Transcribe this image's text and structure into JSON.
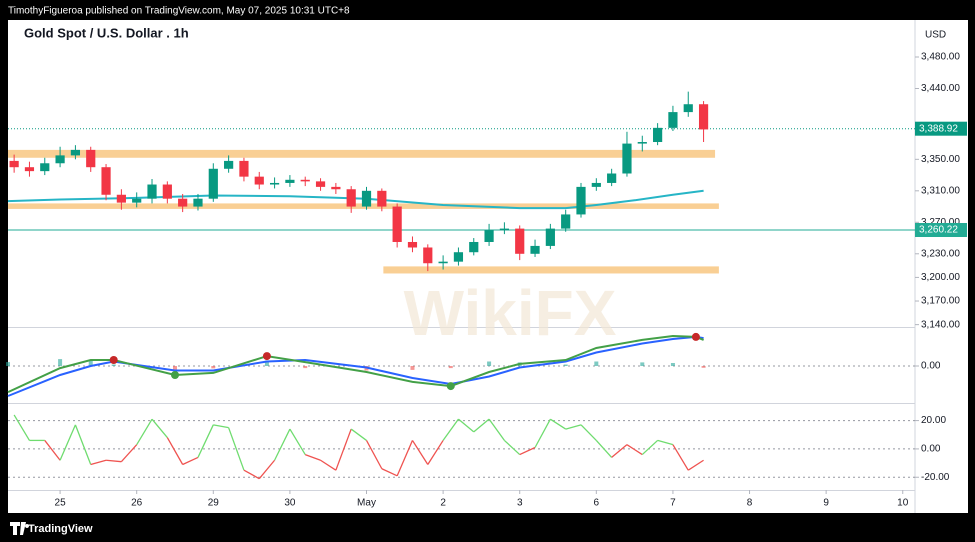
{
  "header": "TimothyFigueroa published on TradingView.com, May 07, 2025 10:31 UTC+8",
  "footer": "TradingView",
  "chart_data": [
    {
      "type": "candlestick",
      "title": "Gold Spot / U.S. Dollar . 1h",
      "currency": "USD",
      "watermark": "WikiFX",
      "x": [
        -0.6,
        -0.4,
        -0.2,
        0,
        0.2,
        0.4,
        0.6,
        0.8,
        1.0,
        1.2,
        1.4,
        1.6,
        1.8,
        2.0,
        2.2,
        2.4,
        2.6,
        2.8,
        3.0,
        3.2,
        3.4,
        3.6,
        3.8,
        4.0,
        4.2,
        4.4,
        4.6,
        4.8,
        5.0,
        5.2,
        5.4,
        5.6,
        5.8,
        6.0,
        6.2,
        6.4,
        6.6,
        6.8,
        7.0,
        7.2,
        7.4,
        7.6,
        7.8,
        8.0,
        8.2,
        8.4
      ],
      "open": [
        3348,
        3340,
        3335,
        3345,
        3355,
        3362,
        3340,
        3305,
        3295,
        3300,
        3318,
        3300,
        3290,
        3300,
        3338,
        3348,
        3328,
        3318,
        3320,
        3324,
        3322,
        3315,
        3312,
        3290,
        3310,
        3290,
        3245,
        3238,
        3218,
        3220,
        3232,
        3245,
        3260,
        3262,
        3230,
        3240,
        3262,
        3280,
        3315,
        3320,
        3332,
        3370,
        3372,
        3390,
        3410,
        3420
      ],
      "high": [
        3356,
        3347,
        3352,
        3366,
        3368,
        3366,
        3344,
        3312,
        3308,
        3325,
        3322,
        3306,
        3306,
        3345,
        3355,
        3352,
        3334,
        3327,
        3330,
        3328,
        3326,
        3320,
        3316,
        3315,
        3313,
        3294,
        3252,
        3242,
        3228,
        3238,
        3250,
        3268,
        3270,
        3266,
        3248,
        3268,
        3286,
        3320,
        3326,
        3338,
        3385,
        3380,
        3396,
        3418,
        3436,
        3424
      ],
      "low": [
        3333,
        3328,
        3330,
        3340,
        3350,
        3334,
        3298,
        3286,
        3289,
        3294,
        3294,
        3283,
        3285,
        3296,
        3333,
        3322,
        3312,
        3313,
        3315,
        3316,
        3310,
        3306,
        3282,
        3286,
        3284,
        3238,
        3232,
        3208,
        3210,
        3215,
        3228,
        3240,
        3255,
        3222,
        3226,
        3236,
        3258,
        3276,
        3310,
        3316,
        3328,
        3360,
        3368,
        3386,
        3404,
        3372
      ],
      "close": [
        3340,
        3335,
        3345,
        3355,
        3362,
        3340,
        3305,
        3295,
        3300,
        3318,
        3300,
        3290,
        3300,
        3338,
        3348,
        3328,
        3318,
        3320,
        3324,
        3322,
        3315,
        3312,
        3290,
        3310,
        3290,
        3245,
        3238,
        3218,
        3220,
        3232,
        3245,
        3260,
        3262,
        3230,
        3240,
        3262,
        3280,
        3315,
        3320,
        3332,
        3370,
        3372,
        3390,
        3410,
        3420,
        3388
      ],
      "up_color": "#089981",
      "down_color": "#f23645",
      "overlays": [
        {
          "x": [
            -0.68,
            0,
            1,
            2,
            3,
            4,
            5,
            6,
            6.6,
            7,
            7.5,
            8,
            8.4
          ],
          "values": [
            3297,
            3299,
            3301,
            3304,
            3303,
            3300,
            3292,
            3288,
            3288,
            3292,
            3298,
            3305,
            3310
          ],
          "color": "#26b5c6"
        }
      ],
      "zones": [
        {
          "low": 3352,
          "high": 3362,
          "start": -0.68,
          "end": 8.55
        },
        {
          "low": 3287,
          "high": 3294,
          "start": -0.68,
          "end": 8.6
        },
        {
          "low": 3205,
          "high": 3214,
          "start": 4.22,
          "end": 8.6
        }
      ],
      "zone_color": "#f9cf94",
      "last_price": {
        "value": 3388.92,
        "label": "3,388.92"
      },
      "level": {
        "value": 3260.22,
        "label": "3,260.22"
      },
      "level_color": "#22ab94",
      "xlim": [
        -0.68,
        11.16
      ],
      "ylim": [
        3137,
        3527
      ],
      "yticks": [
        {
          "value": 3480,
          "label": "3,480.00"
        },
        {
          "value": 3440,
          "label": "3,440.00"
        },
        {
          "value": 3350,
          "label": "3,350.00"
        },
        {
          "value": 3310,
          "label": "3,310.00"
        },
        {
          "value": 3270,
          "label": "3,270.00"
        },
        {
          "value": 3230,
          "label": "3,230.00"
        },
        {
          "value": 3200,
          "label": "3,200.00"
        },
        {
          "value": 3170,
          "label": "3,170.00"
        },
        {
          "value": 3140,
          "label": "3,140.00"
        }
      ]
    },
    {
      "type": "macd",
      "x": [
        -0.68,
        0,
        0.4,
        0.7,
        1.5,
        2,
        2.7,
        3.2,
        4,
        4.6,
        5.1,
        5.6,
        6,
        6.6,
        7,
        7.6,
        8,
        8.3,
        8.4
      ],
      "series": [
        {
          "values": [
            -8.7,
            -0.7,
            2,
            2,
            -3,
            -2.3,
            3.3,
            1.3,
            -2,
            -5.3,
            -6.7,
            -2,
            0.7,
            2,
            6,
            8.7,
            10,
            9.7,
            8.7
          ],
          "color": "#43a047"
        },
        {
          "values": [
            -10,
            -3,
            0,
            1.5,
            -1.5,
            -1.5,
            1.5,
            2,
            -0.5,
            -4,
            -6,
            -3.5,
            -0.5,
            1.5,
            4.5,
            7.5,
            9,
            9.7,
            9.3
          ],
          "color": "#2962ff"
        }
      ],
      "histogram": [
        1.3,
        2.3,
        2,
        0.5,
        -1.5,
        -0.8,
        1.8,
        -0.7,
        -1.5,
        -1.3,
        -0.7,
        1.5,
        1.2,
        0.5,
        1.5,
        1.2,
        1,
        0,
        -0.6
      ],
      "hist_pos_color": "#26a69a",
      "hist_neg_color": "#ef5350",
      "cross_x": [
        0.7,
        1.5,
        2.7,
        5.1,
        8.3
      ],
      "cross_values": [
        2,
        -3,
        3.3,
        -6.7,
        9.7
      ],
      "cross_colors": [
        "#c62828",
        "#43a047",
        "#c62828",
        "#43a047",
        "#c62828"
      ],
      "xlim": [
        -0.68,
        11.16
      ],
      "ylim": [
        -12,
        12
      ],
      "yticks": [
        {
          "value": 0,
          "label": "0.00"
        }
      ]
    },
    {
      "type": "oscillator",
      "x": [
        -0.6,
        -0.4,
        -0.2,
        0,
        0.2,
        0.4,
        0.6,
        0.8,
        1.0,
        1.2,
        1.4,
        1.6,
        1.8,
        2.0,
        2.2,
        2.4,
        2.6,
        2.8,
        3.0,
        3.2,
        3.4,
        3.6,
        3.8,
        4.0,
        4.2,
        4.4,
        4.6,
        4.8,
        5.0,
        5.2,
        5.4,
        5.6,
        5.8,
        6.0,
        6.2,
        6.4,
        6.6,
        6.8,
        7.0,
        7.2,
        7.4,
        7.6,
        7.8,
        8.0,
        8.2,
        8.4
      ],
      "values": [
        24,
        6,
        6,
        -8,
        17,
        -11,
        -8,
        -9,
        3,
        21,
        8,
        -11,
        -6,
        17,
        15,
        -15,
        -21,
        -8,
        14,
        -4,
        -8,
        -15,
        14,
        6,
        -14,
        -19,
        6,
        -11,
        6,
        21,
        12,
        21,
        6,
        -4,
        1,
        21,
        14,
        17,
        6,
        -6,
        3,
        -4,
        6,
        3,
        -15,
        -8
      ],
      "pos_color": "#6fdc6f",
      "neg_color": "#ef5350",
      "xlim": [
        -0.68,
        11.16
      ],
      "ylim": [
        -29,
        31
      ],
      "yticks": [
        {
          "value": 20,
          "label": "20.00"
        },
        {
          "value": 0,
          "label": "0.00"
        },
        {
          "value": -20,
          "label": "-20.00"
        }
      ],
      "xticks": [
        {
          "value": 0,
          "label": "25"
        },
        {
          "value": 1,
          "label": "26"
        },
        {
          "value": 2,
          "label": "29"
        },
        {
          "value": 3,
          "label": "30"
        },
        {
          "value": 4,
          "label": "May"
        },
        {
          "value": 5,
          "label": "2"
        },
        {
          "value": 6,
          "label": "3"
        },
        {
          "value": 7,
          "label": "6"
        },
        {
          "value": 8,
          "label": "7"
        },
        {
          "value": 9,
          "label": "8"
        },
        {
          "value": 10,
          "label": "9"
        },
        {
          "value": 11,
          "label": "10"
        }
      ]
    }
  ]
}
